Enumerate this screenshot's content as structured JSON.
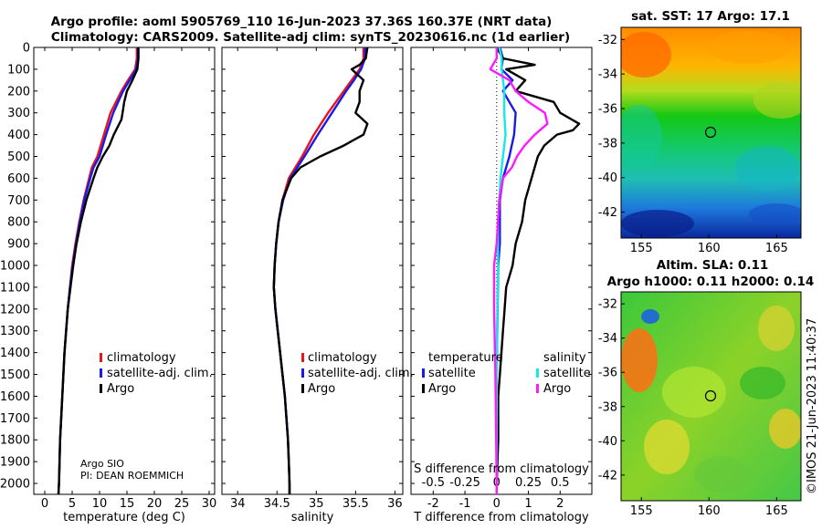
{
  "title": {
    "line1": "Argo profile: aoml 5905769_110 16-Jun-2023 37.36S 160.37E (NRT data)",
    "line2": "Climatology: CARS2009. Satellite-adj clim: synTS_20230616.nc (1d earlier)"
  },
  "colors": {
    "climatology": "#e8141e",
    "satellite": "#1a1ae6",
    "argo": "#000000",
    "s_satellite": "#19e6e6",
    "s_argo": "#ff19ff"
  },
  "chart_data": [
    {
      "type": "line",
      "name": "temperature",
      "xlabel": "temperature (deg C)",
      "xlim": [
        -2,
        31
      ],
      "xticks": [
        "0",
        "5",
        "10",
        "15",
        "20",
        "25",
        "30"
      ],
      "ylim": [
        2050,
        0
      ],
      "yticks": [
        "0",
        "100",
        "200",
        "300",
        "400",
        "500",
        "600",
        "700",
        "800",
        "900",
        "1000",
        "1100",
        "1200",
        "1300",
        "1400",
        "1500",
        "1600",
        "1700",
        "1800",
        "1900",
        "2000"
      ],
      "legend": [
        "climatology",
        "satellite-adj. clim.",
        "Argo"
      ],
      "annotation": [
        "Argo SIO",
        "PI: DEAN ROEMMICH"
      ],
      "series": [
        {
          "name": "climatology",
          "depth": [
            0,
            50,
            100,
            150,
            200,
            300,
            400,
            500,
            550,
            600,
            700,
            800,
            900,
            1000,
            1100,
            1200,
            1300,
            1400,
            1500,
            1600,
            1700,
            1800,
            1900,
            2000,
            2050
          ],
          "values": [
            16.8,
            16.8,
            16.5,
            15.2,
            14.0,
            12.0,
            10.8,
            9.6,
            8.6,
            8.1,
            7.1,
            6.3,
            5.6,
            5.0,
            4.6,
            4.2,
            3.9,
            3.6,
            3.4,
            3.2,
            3.0,
            2.8,
            2.7,
            2.6,
            2.5
          ]
        },
        {
          "name": "satellite-adj. clim.",
          "depth": [
            0,
            50,
            100,
            150,
            200,
            300,
            400,
            500,
            550,
            600,
            700,
            800,
            900,
            1000,
            1100,
            1200,
            1300,
            1400,
            1500,
            1600,
            1700,
            1800,
            1900,
            2000,
            2050
          ],
          "values": [
            17.0,
            17.0,
            16.7,
            15.5,
            14.3,
            12.5,
            11.2,
            10.0,
            8.9,
            8.3,
            7.2,
            6.4,
            5.7,
            5.1,
            4.6,
            4.2,
            3.9,
            3.6,
            3.4,
            3.2,
            3.0,
            2.8,
            2.7,
            2.6,
            2.5
          ]
        },
        {
          "name": "Argo",
          "depth": [
            0,
            50,
            100,
            150,
            200,
            250,
            300,
            330,
            370,
            400,
            450,
            500,
            550,
            600,
            700,
            800,
            900,
            1000,
            1100,
            1200,
            1300,
            1400,
            1500,
            1600,
            1700,
            1800,
            1900,
            2000,
            2050
          ],
          "values": [
            17.1,
            17.1,
            16.9,
            16.0,
            15.0,
            14.5,
            14.2,
            14.0,
            13.2,
            12.6,
            11.8,
            10.6,
            9.6,
            8.9,
            7.6,
            6.6,
            5.8,
            5.2,
            4.7,
            4.2,
            3.9,
            3.6,
            3.4,
            3.2,
            3.0,
            2.8,
            2.7,
            2.6,
            2.5
          ]
        }
      ]
    },
    {
      "type": "line",
      "name": "salinity",
      "xlabel": "salinity",
      "xlim": [
        33.8,
        36.1
      ],
      "xticks": [
        "34",
        "34.5",
        "35",
        "35.5",
        "36"
      ],
      "ylim": [
        2050,
        0
      ],
      "legend": [
        "climatology",
        "satellite-adj. clim.",
        "Argo"
      ],
      "series": [
        {
          "name": "climatology",
          "depth": [
            0,
            50,
            100,
            150,
            200,
            300,
            400,
            500,
            600,
            700,
            800,
            900,
            1000,
            1100,
            1200,
            1300,
            1400,
            1500,
            1600,
            1700,
            1800,
            1900,
            2000,
            2050
          ],
          "values": [
            35.6,
            35.6,
            35.55,
            35.45,
            35.35,
            35.15,
            34.97,
            34.82,
            34.65,
            34.57,
            34.52,
            34.49,
            34.47,
            34.46,
            34.48,
            34.51,
            34.54,
            34.57,
            34.6,
            34.62,
            34.64,
            34.65,
            34.66,
            34.66
          ]
        },
        {
          "name": "satellite-adj. clim.",
          "depth": [
            0,
            50,
            100,
            150,
            200,
            300,
            400,
            500,
            600,
            700,
            800,
            900,
            1000,
            1100,
            1200,
            1300,
            1400,
            1500,
            1600,
            1700,
            1800,
            1900,
            2000,
            2050
          ],
          "values": [
            35.62,
            35.62,
            35.57,
            35.48,
            35.38,
            35.2,
            35.02,
            34.85,
            34.67,
            34.58,
            34.52,
            34.49,
            34.47,
            34.46,
            34.48,
            34.51,
            34.54,
            34.57,
            34.6,
            34.62,
            34.64,
            34.65,
            34.66,
            34.66
          ]
        },
        {
          "name": "Argo",
          "depth": [
            0,
            50,
            80,
            100,
            150,
            200,
            250,
            300,
            350,
            400,
            450,
            500,
            550,
            600,
            700,
            800,
            900,
            1000,
            1100,
            1200,
            1300,
            1400,
            1500,
            1600,
            1700,
            1800,
            1900,
            2000,
            2050
          ],
          "values": [
            35.65,
            35.63,
            35.55,
            35.45,
            35.6,
            35.55,
            35.55,
            35.5,
            35.65,
            35.6,
            35.35,
            35.05,
            34.8,
            34.68,
            34.57,
            34.52,
            34.49,
            34.47,
            34.46,
            34.48,
            34.51,
            34.54,
            34.57,
            34.6,
            34.62,
            34.64,
            34.65,
            34.66,
            34.66
          ]
        }
      ]
    },
    {
      "type": "line",
      "name": "difference",
      "xlabel": "T difference from climatology",
      "xlabel2": "S difference from climatology",
      "xlim": [
        -2.7,
        3.0
      ],
      "xticks": [
        "-2",
        "-1",
        "0",
        "1",
        "2"
      ],
      "xticks2": [
        "-0.5",
        "-0.25",
        "0",
        "0.25",
        "0.5"
      ],
      "ylim": [
        2050,
        0
      ],
      "legend_t": [
        "temperature",
        "satellite",
        "Argo"
      ],
      "legend_s": [
        "salinity",
        "satellite",
        "Argo"
      ],
      "series": [
        {
          "name": "T satellite",
          "depth": [
            0,
            50,
            100,
            150,
            200,
            300,
            400,
            500,
            600,
            700,
            800,
            900,
            1000,
            1500,
            2000,
            2050
          ],
          "values": [
            0.1,
            0.2,
            0.15,
            0.5,
            0.2,
            0.6,
            0.55,
            0.4,
            0.2,
            0.1,
            0.1,
            0.1,
            0.05,
            0.0,
            0.0,
            0.0
          ]
        },
        {
          "name": "T Argo",
          "depth": [
            0,
            50,
            80,
            100,
            150,
            200,
            250,
            300,
            350,
            380,
            400,
            450,
            500,
            600,
            700,
            800,
            900,
            1000,
            1100,
            1200,
            1300,
            1400,
            1500,
            1600,
            1800,
            2000,
            2050
          ],
          "values": [
            0.0,
            0.2,
            1.2,
            0.3,
            0.9,
            0.6,
            1.8,
            2.0,
            2.6,
            2.4,
            1.9,
            1.5,
            1.3,
            1.1,
            0.9,
            0.8,
            0.6,
            0.5,
            0.3,
            0.25,
            0.2,
            0.15,
            0.1,
            0.05,
            0.05,
            0.0,
            0.0
          ]
        },
        {
          "name": "S satellite",
          "depth": [
            0,
            50,
            100,
            200,
            300,
            400,
            500,
            600,
            700,
            800,
            1000,
            1500,
            2000,
            2050
          ],
          "values": [
            0.02,
            0.04,
            0.04,
            0.06,
            0.06,
            0.07,
            0.05,
            0.03,
            0.02,
            0.01,
            0.01,
            0.0,
            0.0,
            0.0
          ]
        },
        {
          "name": "S Argo",
          "depth": [
            0,
            50,
            100,
            150,
            200,
            250,
            300,
            350,
            400,
            450,
            500,
            550,
            600,
            700,
            800,
            900,
            1000,
            1200,
            1500,
            2000,
            2050
          ],
          "values": [
            0.0,
            0.0,
            -0.05,
            0.1,
            0.15,
            0.25,
            0.38,
            0.4,
            0.3,
            0.22,
            0.16,
            0.12,
            0.05,
            0.02,
            0.01,
            0.0,
            -0.02,
            -0.02,
            -0.01,
            0.0,
            0.0
          ]
        }
      ]
    }
  ],
  "maps": {
    "sst": {
      "title": "sat. SST: 17 Argo: 17.1",
      "xticks": [
        "155",
        "160",
        "165"
      ],
      "yticks": [
        "-32",
        "-34",
        "-36",
        "-38",
        "-40",
        "-42"
      ]
    },
    "sla": {
      "title1": "Altim. SLA: 0.11",
      "title2": "Argo h1000: 0.11 h2000: 0.14",
      "xticks": [
        "155",
        "160",
        "165"
      ],
      "yticks": [
        "-32",
        "-34",
        "-36",
        "-38",
        "-40",
        "-42"
      ]
    }
  },
  "credit": "©IMOS 21-Jun-2023 11:40:37"
}
